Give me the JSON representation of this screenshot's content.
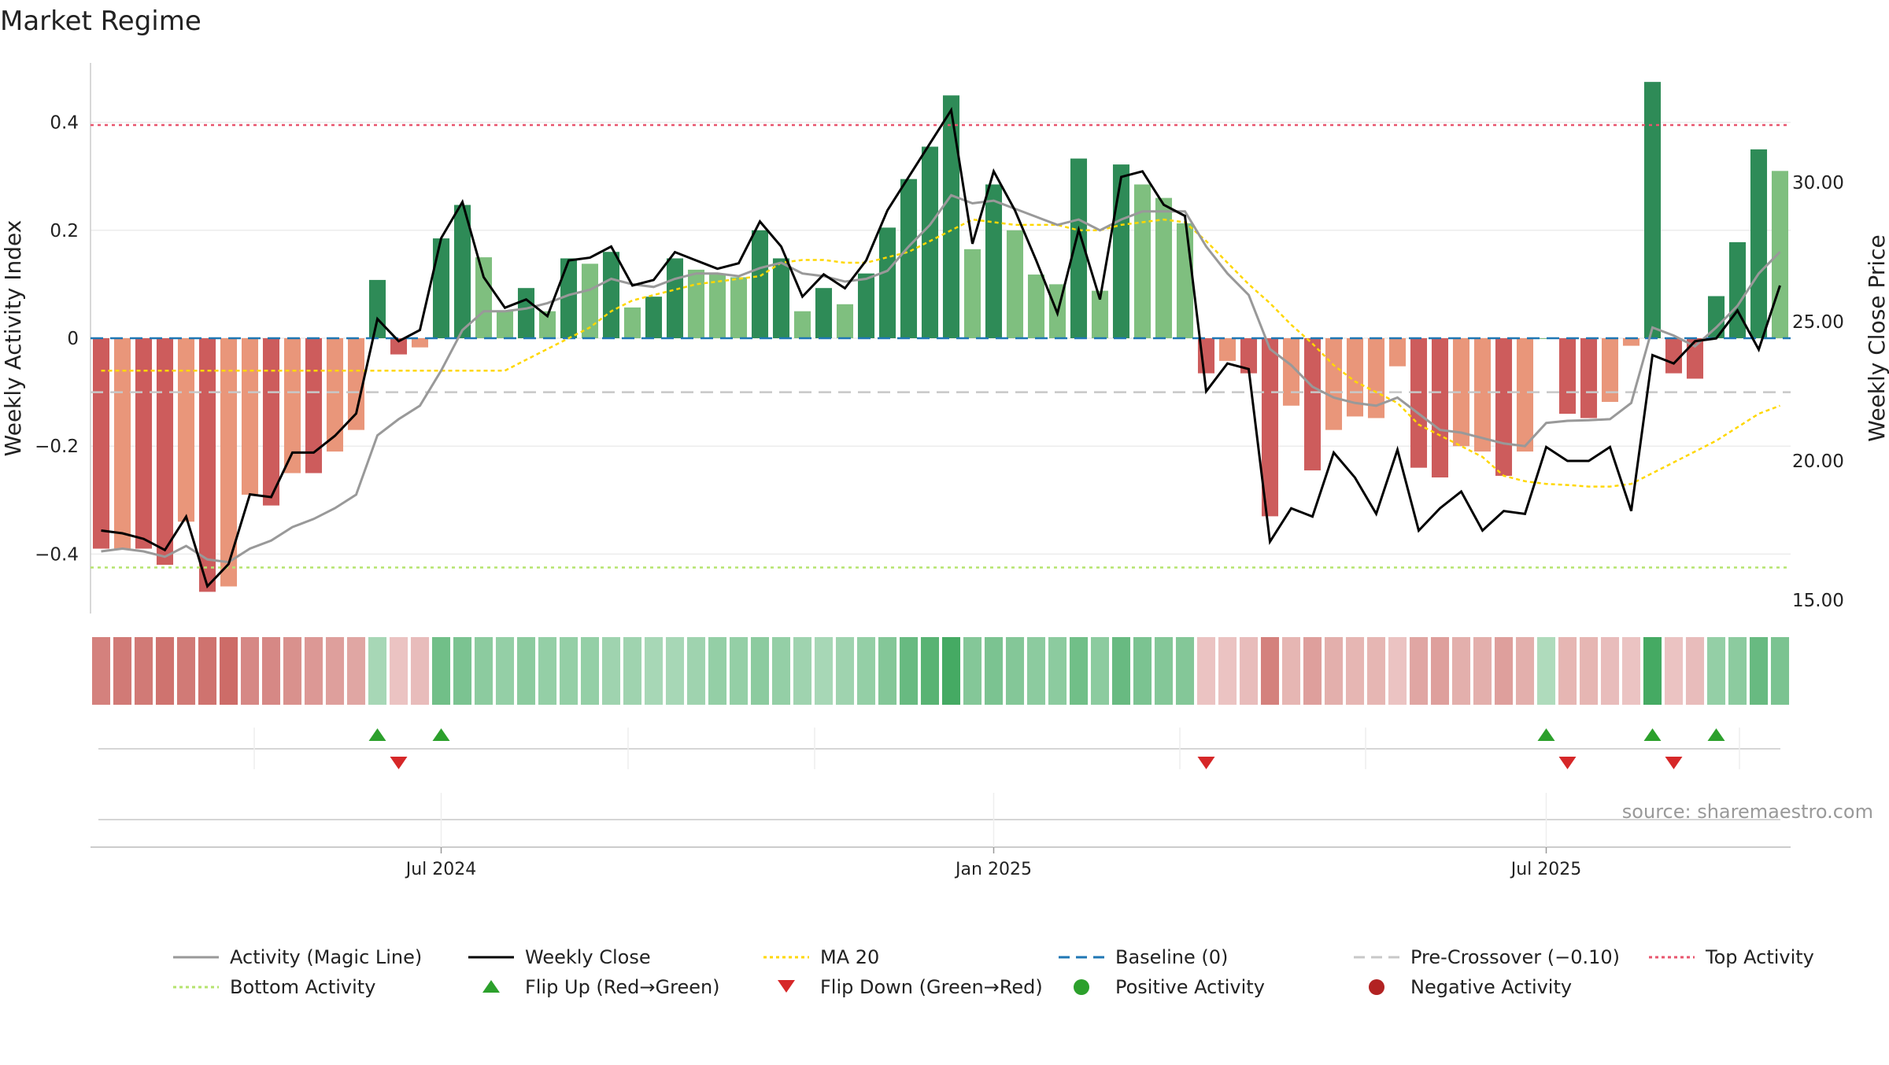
{
  "title": "Market Regime",
  "source": "source: sharemaestro.com",
  "chart_data": {
    "type": "bar",
    "title": "Market Regime",
    "ylabel": "Weekly Activity Index",
    "ylabel_right": "Weekly Close Price",
    "ylim": [
      -0.5,
      0.52
    ],
    "ylim_right": [
      15.0,
      34.7
    ],
    "yticks": [
      0.4,
      0.2,
      0,
      -0.2,
      -0.4
    ],
    "ytick_labels": [
      "0.4",
      "0.2",
      "0",
      "−0.2",
      "−0.4"
    ],
    "yticks_right": [
      30.0,
      25.0,
      20.0,
      15.0
    ],
    "ytick_labels_right": [
      "30.00",
      "25.00",
      "20.00",
      "15.00"
    ],
    "xtick_labels": [
      {
        "label": "Jul 2024",
        "index": 16
      },
      {
        "label": "Jan 2025",
        "index": 42
      },
      {
        "label": "Jul 2025",
        "index": 68
      }
    ],
    "grid": true,
    "legend_position": "bottom",
    "colors": {
      "positive_strong": "#2e8b57",
      "positive_weak": "#7fbf7f",
      "negative_strong": "#cd5c5c",
      "negative_weak": "#e9967a",
      "magic_line": "#999999",
      "close": "#000000",
      "ma20": "#ffd700",
      "baseline": "#1f77b4",
      "precross": "#c8c8c8",
      "top_line": "#e8556d",
      "bottom_line": "#b5e36e",
      "flip_up": "#2ca02c",
      "flip_down": "#d62728"
    },
    "reference_lines": {
      "baseline": 0,
      "pre_crossover": -0.1,
      "top_activity": 0.395,
      "bottom_activity": -0.425
    },
    "activity": [
      -0.39,
      -0.39,
      -0.39,
      -0.42,
      -0.34,
      -0.47,
      -0.46,
      -0.29,
      -0.31,
      -0.25,
      -0.25,
      -0.21,
      -0.17,
      0.108,
      -0.03,
      -0.017,
      0.185,
      0.247,
      0.15,
      0.05,
      0.093,
      0.05,
      0.148,
      0.138,
      0.16,
      0.057,
      0.077,
      0.148,
      0.127,
      0.118,
      0.113,
      0.2,
      0.148,
      0.05,
      0.093,
      0.063,
      0.12,
      0.205,
      0.295,
      0.355,
      0.45,
      0.165,
      0.285,
      0.2,
      0.118,
      0.1,
      0.333,
      0.088,
      0.322,
      0.285,
      0.26,
      0.213,
      -0.065,
      -0.042,
      -0.065,
      -0.33,
      -0.125,
      -0.245,
      -0.17,
      -0.145,
      -0.148,
      -0.052,
      -0.24,
      -0.258,
      -0.2,
      -0.21,
      -0.255,
      -0.21,
      0,
      -0.14,
      -0.148,
      -0.118,
      -0.014,
      0.475,
      -0.065,
      -0.075,
      0.078,
      0.178,
      0.35,
      0.31
    ],
    "activity_strong": [
      1,
      0,
      1,
      1,
      0,
      1,
      0,
      0,
      1,
      0,
      1,
      0,
      0,
      1,
      1,
      0,
      1,
      1,
      0,
      0,
      1,
      0,
      1,
      0,
      1,
      0,
      1,
      1,
      0,
      0,
      0,
      1,
      1,
      0,
      1,
      0,
      1,
      1,
      1,
      1,
      1,
      0,
      1,
      0,
      0,
      0,
      1,
      0,
      1,
      0,
      0,
      0,
      1,
      0,
      1,
      1,
      0,
      1,
      0,
      0,
      0,
      0,
      1,
      1,
      0,
      0,
      1,
      0,
      0,
      1,
      1,
      0,
      0,
      1,
      1,
      1,
      1,
      1,
      1,
      0
    ],
    "magic_line": [
      -0.395,
      -0.39,
      -0.395,
      -0.405,
      -0.385,
      -0.41,
      -0.415,
      -0.39,
      -0.375,
      -0.35,
      -0.335,
      -0.315,
      -0.29,
      -0.18,
      -0.15,
      -0.125,
      -0.06,
      0.015,
      0.05,
      0.05,
      0.055,
      0.065,
      0.08,
      0.09,
      0.11,
      0.1,
      0.095,
      0.11,
      0.12,
      0.12,
      0.115,
      0.13,
      0.14,
      0.12,
      0.115,
      0.105,
      0.11,
      0.125,
      0.17,
      0.21,
      0.265,
      0.25,
      0.255,
      0.24,
      0.225,
      0.21,
      0.22,
      0.2,
      0.22,
      0.235,
      0.235,
      0.235,
      0.17,
      0.12,
      0.08,
      -0.02,
      -0.05,
      -0.09,
      -0.11,
      -0.12,
      -0.125,
      -0.11,
      -0.14,
      -0.17,
      -0.175,
      -0.185,
      -0.195,
      -0.2,
      -0.157,
      -0.153,
      -0.152,
      -0.15,
      -0.12,
      0.02,
      0.005,
      -0.015,
      0.02,
      0.06,
      0.12,
      0.16
    ],
    "weekly_close": [
      17.5,
      17.4,
      17.2,
      16.8,
      18.0,
      15.5,
      16.3,
      18.8,
      18.7,
      20.3,
      20.3,
      20.9,
      21.7,
      25.1,
      24.3,
      24.7,
      28.0,
      29.3,
      26.6,
      25.5,
      25.8,
      25.2,
      27.2,
      27.3,
      27.7,
      26.3,
      26.5,
      27.5,
      27.2,
      26.9,
      27.1,
      28.6,
      27.7,
      25.9,
      26.7,
      26.2,
      27.2,
      29.0,
      30.2,
      31.4,
      32.6,
      27.8,
      30.4,
      29.0,
      27.2,
      25.3,
      28.3,
      25.8,
      30.2,
      30.4,
      29.2,
      28.8,
      22.5,
      23.5,
      23.3,
      17.1,
      18.3,
      18.0,
      20.3,
      19.4,
      18.1,
      20.4,
      17.5,
      18.3,
      18.9,
      17.5,
      18.2,
      18.1,
      20.5,
      20.0,
      20.0,
      20.5,
      18.2,
      23.8,
      23.5,
      24.3,
      24.4,
      25.4,
      24.0,
      26.3
    ],
    "ma20": [
      -0.06,
      -0.06,
      -0.06,
      -0.06,
      -0.06,
      -0.06,
      -0.06,
      -0.06,
      -0.06,
      -0.06,
      -0.06,
      -0.06,
      -0.06,
      -0.06,
      -0.06,
      -0.06,
      -0.06,
      -0.06,
      -0.06,
      -0.06,
      -0.04,
      -0.02,
      0.0,
      0.02,
      0.05,
      0.07,
      0.08,
      0.09,
      0.1,
      0.105,
      0.11,
      0.115,
      0.14,
      0.145,
      0.145,
      0.14,
      0.14,
      0.15,
      0.16,
      0.18,
      0.2,
      0.22,
      0.215,
      0.21,
      0.21,
      0.21,
      0.2,
      0.2,
      0.21,
      0.215,
      0.22,
      0.215,
      0.18,
      0.14,
      0.1,
      0.065,
      0.025,
      -0.01,
      -0.05,
      -0.08,
      -0.1,
      -0.12,
      -0.16,
      -0.18,
      -0.2,
      -0.22,
      -0.255,
      -0.265,
      -0.27,
      -0.272,
      -0.275,
      -0.275,
      -0.27,
      -0.25,
      -0.23,
      -0.21,
      -0.19,
      -0.165,
      -0.14,
      -0.125
    ],
    "regime_intensity": [
      0.55,
      0.6,
      0.6,
      0.65,
      0.6,
      0.65,
      0.7,
      0.5,
      0.5,
      0.45,
      0.4,
      0.35,
      0.3,
      0.2,
      0.1,
      0.15,
      0.5,
      0.45,
      0.35,
      0.3,
      0.35,
      0.3,
      0.3,
      0.3,
      0.25,
      0.25,
      0.2,
      0.2,
      0.25,
      0.3,
      0.3,
      0.35,
      0.3,
      0.25,
      0.2,
      0.25,
      0.3,
      0.4,
      0.55,
      0.65,
      0.75,
      0.4,
      0.45,
      0.4,
      0.35,
      0.35,
      0.5,
      0.35,
      0.55,
      0.45,
      0.4,
      0.4,
      0.1,
      0.1,
      0.15,
      0.55,
      0.2,
      0.35,
      0.25,
      0.2,
      0.2,
      0.1,
      0.3,
      0.35,
      0.25,
      0.25,
      0.35,
      0.25,
      0.15,
      0.2,
      0.2,
      0.15,
      0.1,
      0.75,
      0.1,
      0.15,
      0.3,
      0.35,
      0.55,
      0.45
    ],
    "flip_up_indices": [
      13,
      16,
      68,
      73,
      76
    ],
    "flip_down_indices": [
      14,
      52,
      69,
      74
    ],
    "legend": [
      {
        "label": "Activity (Magic Line)",
        "kind": "line",
        "color": "#999999",
        "dash": ""
      },
      {
        "label": "Weekly Close",
        "kind": "line",
        "color": "#000000",
        "dash": ""
      },
      {
        "label": "MA 20",
        "kind": "line",
        "color": "#ffd700",
        "dash": "4,4"
      },
      {
        "label": "Baseline (0)",
        "kind": "line",
        "color": "#1f77b4",
        "dash": "14,8"
      },
      {
        "label": "Pre-Crossover (−0.10)",
        "kind": "line",
        "color": "#c8c8c8",
        "dash": "14,8"
      },
      {
        "label": "Top Activity",
        "kind": "line",
        "color": "#e8556d",
        "dash": "4,4"
      },
      {
        "label": "Bottom Activity",
        "kind": "line",
        "color": "#b5e36e",
        "dash": "4,4"
      },
      {
        "label": "Flip Up (Red→Green)",
        "kind": "tri-up",
        "color": "#2ca02c",
        "dash": ""
      },
      {
        "label": "Flip Down (Green→Red)",
        "kind": "tri-down",
        "color": "#d62728",
        "dash": ""
      },
      {
        "label": "Positive Activity",
        "kind": "dot",
        "color": "#2ca02c",
        "dash": ""
      },
      {
        "label": "Negative Activity",
        "kind": "dot",
        "color": "#b22222",
        "dash": ""
      }
    ]
  }
}
